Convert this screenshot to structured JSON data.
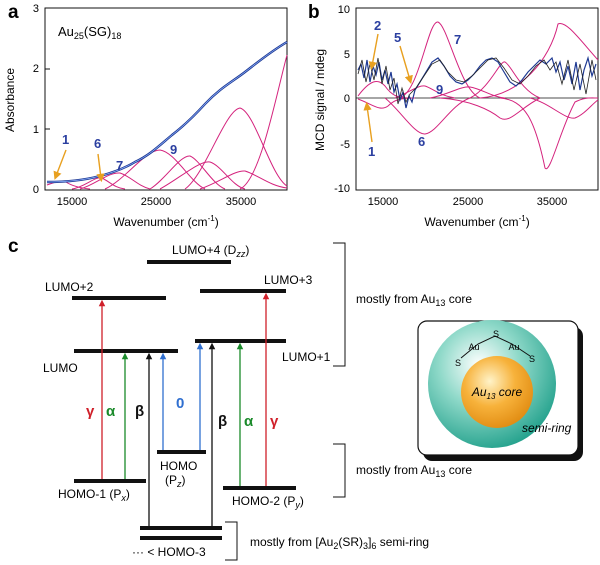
{
  "panel_a": {
    "letter": "a",
    "annotation": "Au25(SG)18",
    "ylabel": "Absorbance",
    "xlabel": "Wavenumber (cm-1)",
    "yticks": [
      "0",
      "1",
      "2",
      "3"
    ],
    "xticks": [
      "15000",
      "25000",
      "35000"
    ],
    "peak_labels": [
      "1",
      "6",
      "7",
      "9"
    ]
  },
  "panel_b": {
    "letter": "b",
    "ylabel": "MCD signal / mdeg",
    "xlabel": "Wavenumber (cm-1)",
    "yticks": [
      "10",
      "5",
      "0",
      "-5",
      "-10"
    ],
    "xticks": [
      "15000",
      "25000",
      "35000"
    ],
    "peak_labels": [
      "2",
      "5",
      "7",
      "9",
      "1",
      "6"
    ]
  },
  "panel_c": {
    "letter": "c",
    "levels": {
      "lumo4": "LUMO+4 (Dzz)",
      "lumo2": "LUMO+2",
      "lumo3": "LUMO+3",
      "lumo": "LUMO",
      "lumo1": "LUMO+1",
      "homo": "HOMO",
      "pz": "(Pz)",
      "homo1": "HOMO-1 (Px)",
      "homo2": "HOMO-2 (Py)",
      "homo3": "··· < HOMO-3"
    },
    "transitions": [
      "γ",
      "α",
      "β",
      "0",
      "β",
      "α",
      "γ"
    ],
    "brackets": [
      "mostly from Au13 core",
      "mostly from Au13 core",
      "mostly from [Au2(SR)3]6 semi-ring"
    ],
    "schematic": {
      "core_label": "Au13 core",
      "ring_label": "semi-ring",
      "atoms": [
        "S",
        "Au",
        "S",
        "Au",
        "S"
      ]
    }
  },
  "colors": {
    "fit": "#d4237d",
    "data": "#1f3a93",
    "pointer": "#e8a020",
    "label": "#2b3fa0",
    "gamma": "#d0202a",
    "alpha": "#1a8a2a",
    "zero": "#2f6fd0"
  },
  "chart_data": [
    {
      "type": "line",
      "title": "",
      "annotation": "Au25(SG)18",
      "xlabel": "Wavenumber (cm-1)",
      "ylabel": "Absorbance",
      "xlim": [
        14000,
        40000
      ],
      "ylim": [
        0,
        3
      ],
      "series": [
        {
          "x": [
            14000,
            16000,
            18000,
            20000,
            22000,
            24000,
            26000,
            28000,
            30000,
            32000,
            34000,
            36000,
            38000,
            40000
          ],
          "y": [
            0.12,
            0.14,
            0.2,
            0.28,
            0.38,
            0.52,
            0.7,
            0.9,
            1.1,
            1.35,
            1.65,
            1.95,
            2.2,
            2.45
          ]
        }
      ]
    },
    {
      "type": "line",
      "title": "",
      "xlabel": "Wavenumber (cm-1)",
      "ylabel": "MCD signal / mdeg",
      "xlim": [
        14000,
        40000
      ],
      "ylim": [
        -10,
        10
      ],
      "series": [
        {
          "x": [
            14000,
            15000,
            16000,
            17000,
            18000,
            19000,
            20000,
            21000,
            22000,
            23000,
            24000,
            25000,
            26000,
            27000,
            28000,
            29000,
            30000,
            31000,
            32000,
            33000,
            34000,
            35000,
            36000,
            37000,
            38000,
            39000,
            40000
          ],
          "y": [
            3.0,
            3.5,
            3.0,
            2.0,
            1.5,
            0.5,
            -0.5,
            1.0,
            3.5,
            4.5,
            3.5,
            2.0,
            1.5,
            2.5,
            4.0,
            5.0,
            4.0,
            2.5,
            2.0,
            2.0,
            3.0,
            4.0,
            3.5,
            2.5,
            3.0,
            3.5,
            3.0
          ]
        }
      ]
    }
  ]
}
